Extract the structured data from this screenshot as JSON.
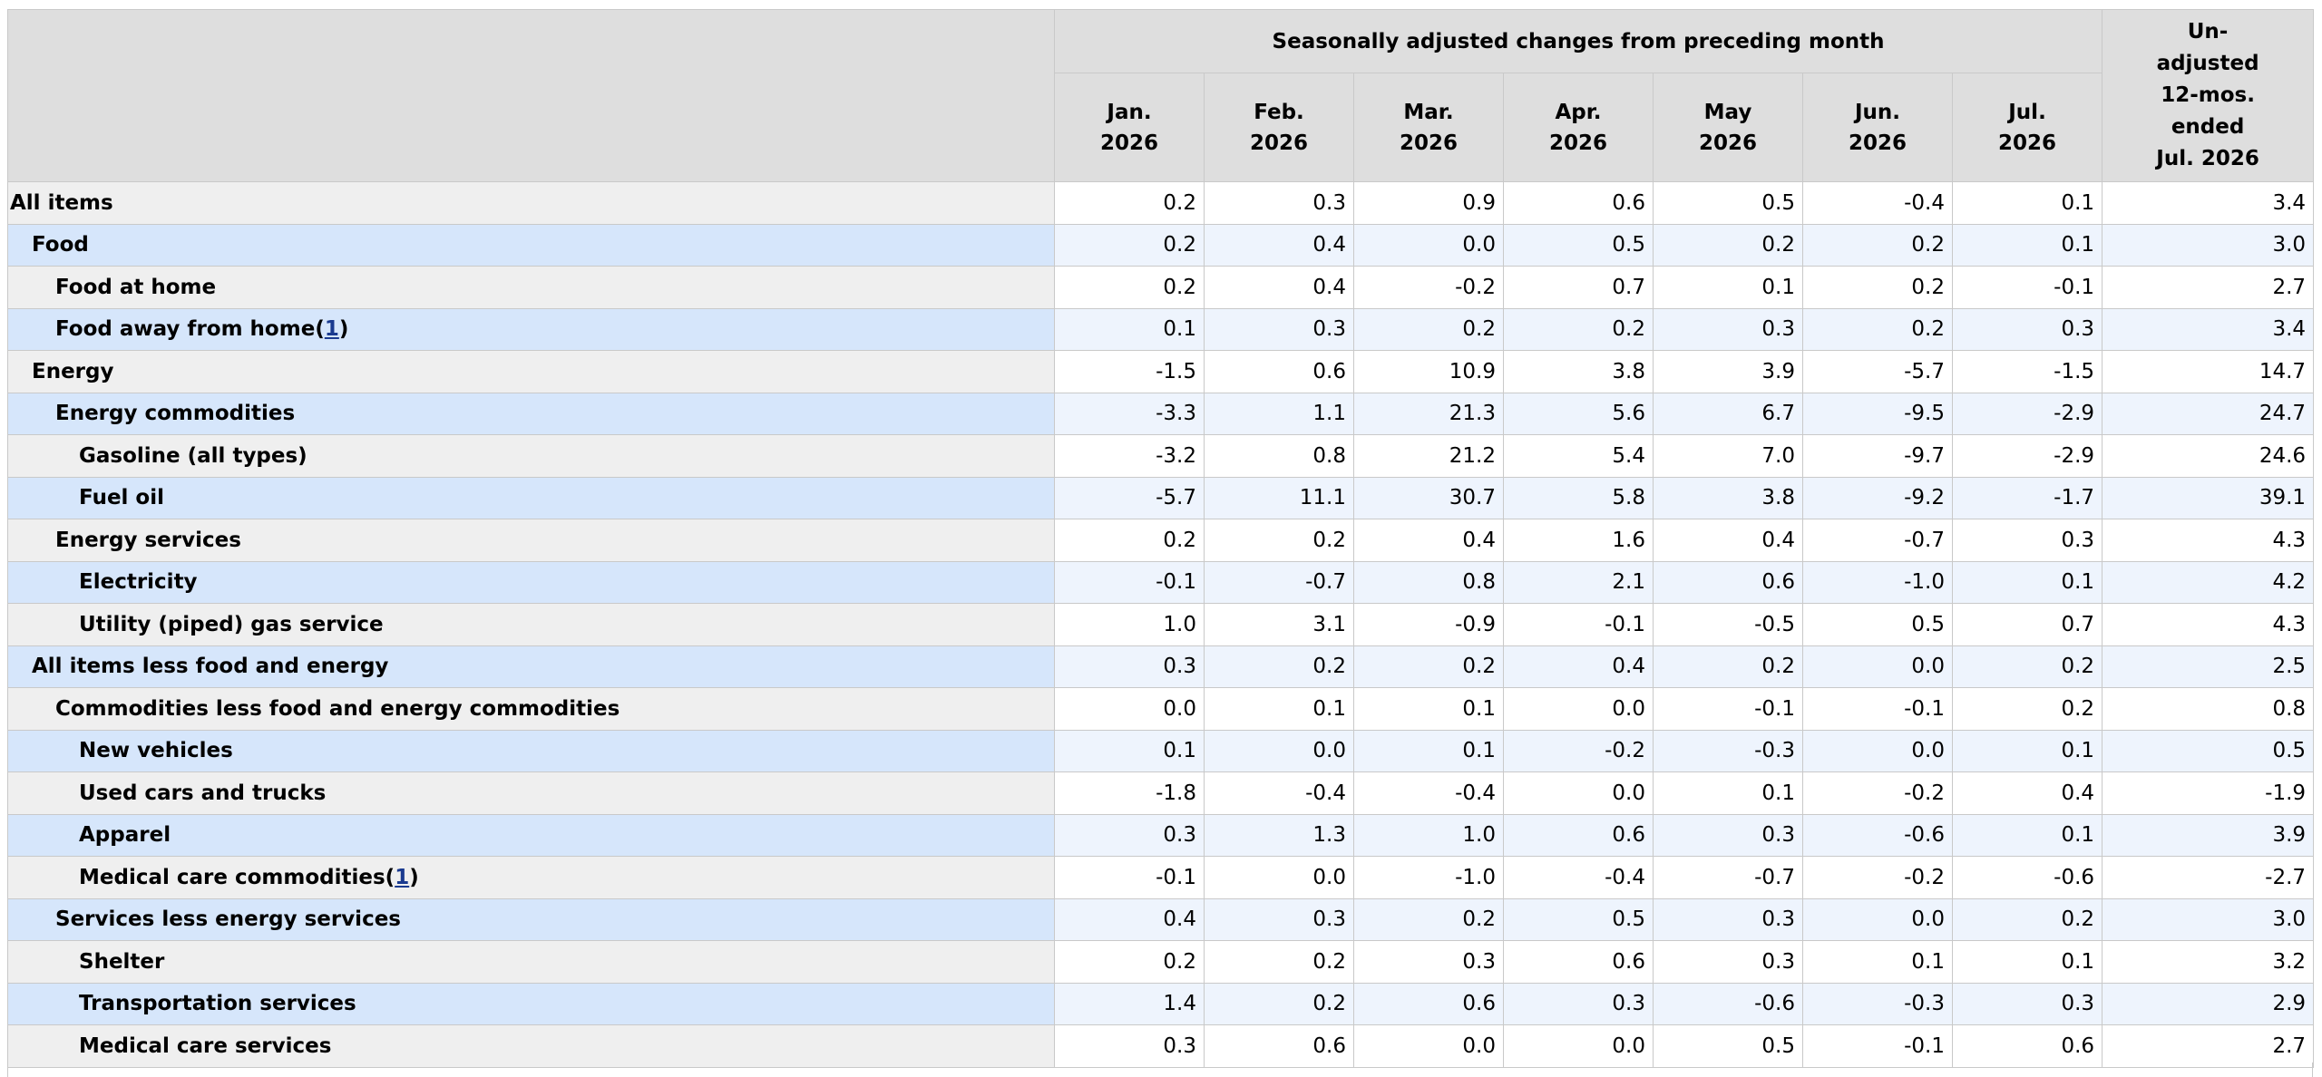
{
  "header": {
    "group_label": "Seasonally adjusted changes from preceding month",
    "months": [
      {
        "month": "Jan.",
        "year": "2026"
      },
      {
        "month": "Feb.",
        "year": "2026"
      },
      {
        "month": "Mar.",
        "year": "2026"
      },
      {
        "month": "Apr.",
        "year": "2026"
      },
      {
        "month": "May",
        "year": "2026"
      },
      {
        "month": "Jun.",
        "year": "2026"
      },
      {
        "month": "Jul.",
        "year": "2026"
      }
    ],
    "unadjusted": [
      "Un-",
      "adjusted",
      "12-mos.",
      "ended",
      "Jul. 2026"
    ]
  },
  "rows": [
    {
      "label": "All items",
      "indent": 0,
      "footnote": "",
      "values": [
        "0.2",
        "0.3",
        "0.9",
        "0.6",
        "0.5",
        "-0.4",
        "0.1",
        "3.4"
      ]
    },
    {
      "label": "Food",
      "indent": 1,
      "footnote": "",
      "values": [
        "0.2",
        "0.4",
        "0.0",
        "0.5",
        "0.2",
        "0.2",
        "0.1",
        "3.0"
      ]
    },
    {
      "label": "Food at home",
      "indent": 2,
      "footnote": "",
      "values": [
        "0.2",
        "0.4",
        "-0.2",
        "0.7",
        "0.1",
        "0.2",
        "-0.1",
        "2.7"
      ]
    },
    {
      "label": "Food away from home",
      "indent": 2,
      "footnote": "1",
      "values": [
        "0.1",
        "0.3",
        "0.2",
        "0.2",
        "0.3",
        "0.2",
        "0.3",
        "3.4"
      ]
    },
    {
      "label": "Energy",
      "indent": 1,
      "footnote": "",
      "values": [
        "-1.5",
        "0.6",
        "10.9",
        "3.8",
        "3.9",
        "-5.7",
        "-1.5",
        "14.7"
      ]
    },
    {
      "label": "Energy commodities",
      "indent": 2,
      "footnote": "",
      "values": [
        "-3.3",
        "1.1",
        "21.3",
        "5.6",
        "6.7",
        "-9.5",
        "-2.9",
        "24.7"
      ]
    },
    {
      "label": "Gasoline (all types)",
      "indent": 3,
      "footnote": "",
      "values": [
        "-3.2",
        "0.8",
        "21.2",
        "5.4",
        "7.0",
        "-9.7",
        "-2.9",
        "24.6"
      ]
    },
    {
      "label": "Fuel oil",
      "indent": 3,
      "footnote": "",
      "values": [
        "-5.7",
        "11.1",
        "30.7",
        "5.8",
        "3.8",
        "-9.2",
        "-1.7",
        "39.1"
      ]
    },
    {
      "label": "Energy services",
      "indent": 2,
      "footnote": "",
      "values": [
        "0.2",
        "0.2",
        "0.4",
        "1.6",
        "0.4",
        "-0.7",
        "0.3",
        "4.3"
      ]
    },
    {
      "label": "Electricity",
      "indent": 3,
      "footnote": "",
      "values": [
        "-0.1",
        "-0.7",
        "0.8",
        "2.1",
        "0.6",
        "-1.0",
        "0.1",
        "4.2"
      ]
    },
    {
      "label": "Utility (piped) gas service",
      "indent": 3,
      "footnote": "",
      "values": [
        "1.0",
        "3.1",
        "-0.9",
        "-0.1",
        "-0.5",
        "0.5",
        "0.7",
        "4.3"
      ]
    },
    {
      "label": "All items less food and energy",
      "indent": 1,
      "footnote": "",
      "values": [
        "0.3",
        "0.2",
        "0.2",
        "0.4",
        "0.2",
        "0.0",
        "0.2",
        "2.5"
      ]
    },
    {
      "label": "Commodities less food and energy commodities",
      "indent": 2,
      "footnote": "",
      "values": [
        "0.0",
        "0.1",
        "0.1",
        "0.0",
        "-0.1",
        "-0.1",
        "0.2",
        "0.8"
      ]
    },
    {
      "label": "New vehicles",
      "indent": 3,
      "footnote": "",
      "values": [
        "0.1",
        "0.0",
        "0.1",
        "-0.2",
        "-0.3",
        "0.0",
        "0.1",
        "0.5"
      ]
    },
    {
      "label": "Used cars and trucks",
      "indent": 3,
      "footnote": "",
      "values": [
        "-1.8",
        "-0.4",
        "-0.4",
        "0.0",
        "0.1",
        "-0.2",
        "0.4",
        "-1.9"
      ]
    },
    {
      "label": "Apparel",
      "indent": 3,
      "footnote": "",
      "values": [
        "0.3",
        "1.3",
        "1.0",
        "0.6",
        "0.3",
        "-0.6",
        "0.1",
        "3.9"
      ]
    },
    {
      "label": "Medical care commodities",
      "indent": 3,
      "footnote": "1",
      "values": [
        "-0.1",
        "0.0",
        "-1.0",
        "-0.4",
        "-0.7",
        "-0.2",
        "-0.6",
        "-2.7"
      ]
    },
    {
      "label": "Services less energy services",
      "indent": 2,
      "footnote": "",
      "values": [
        "0.4",
        "0.3",
        "0.2",
        "0.5",
        "0.3",
        "0.0",
        "0.2",
        "3.0"
      ]
    },
    {
      "label": "Shelter",
      "indent": 3,
      "footnote": "",
      "values": [
        "0.2",
        "0.2",
        "0.3",
        "0.6",
        "0.3",
        "0.1",
        "0.1",
        "3.2"
      ]
    },
    {
      "label": "Transportation services",
      "indent": 3,
      "footnote": "",
      "values": [
        "1.4",
        "0.2",
        "0.6",
        "0.3",
        "-0.6",
        "-0.3",
        "0.3",
        "2.9"
      ]
    },
    {
      "label": "Medical care services",
      "indent": 3,
      "footnote": "",
      "values": [
        "0.3",
        "0.6",
        "0.0",
        "0.0",
        "0.5",
        "-0.1",
        "0.6",
        "2.7"
      ]
    }
  ]
}
